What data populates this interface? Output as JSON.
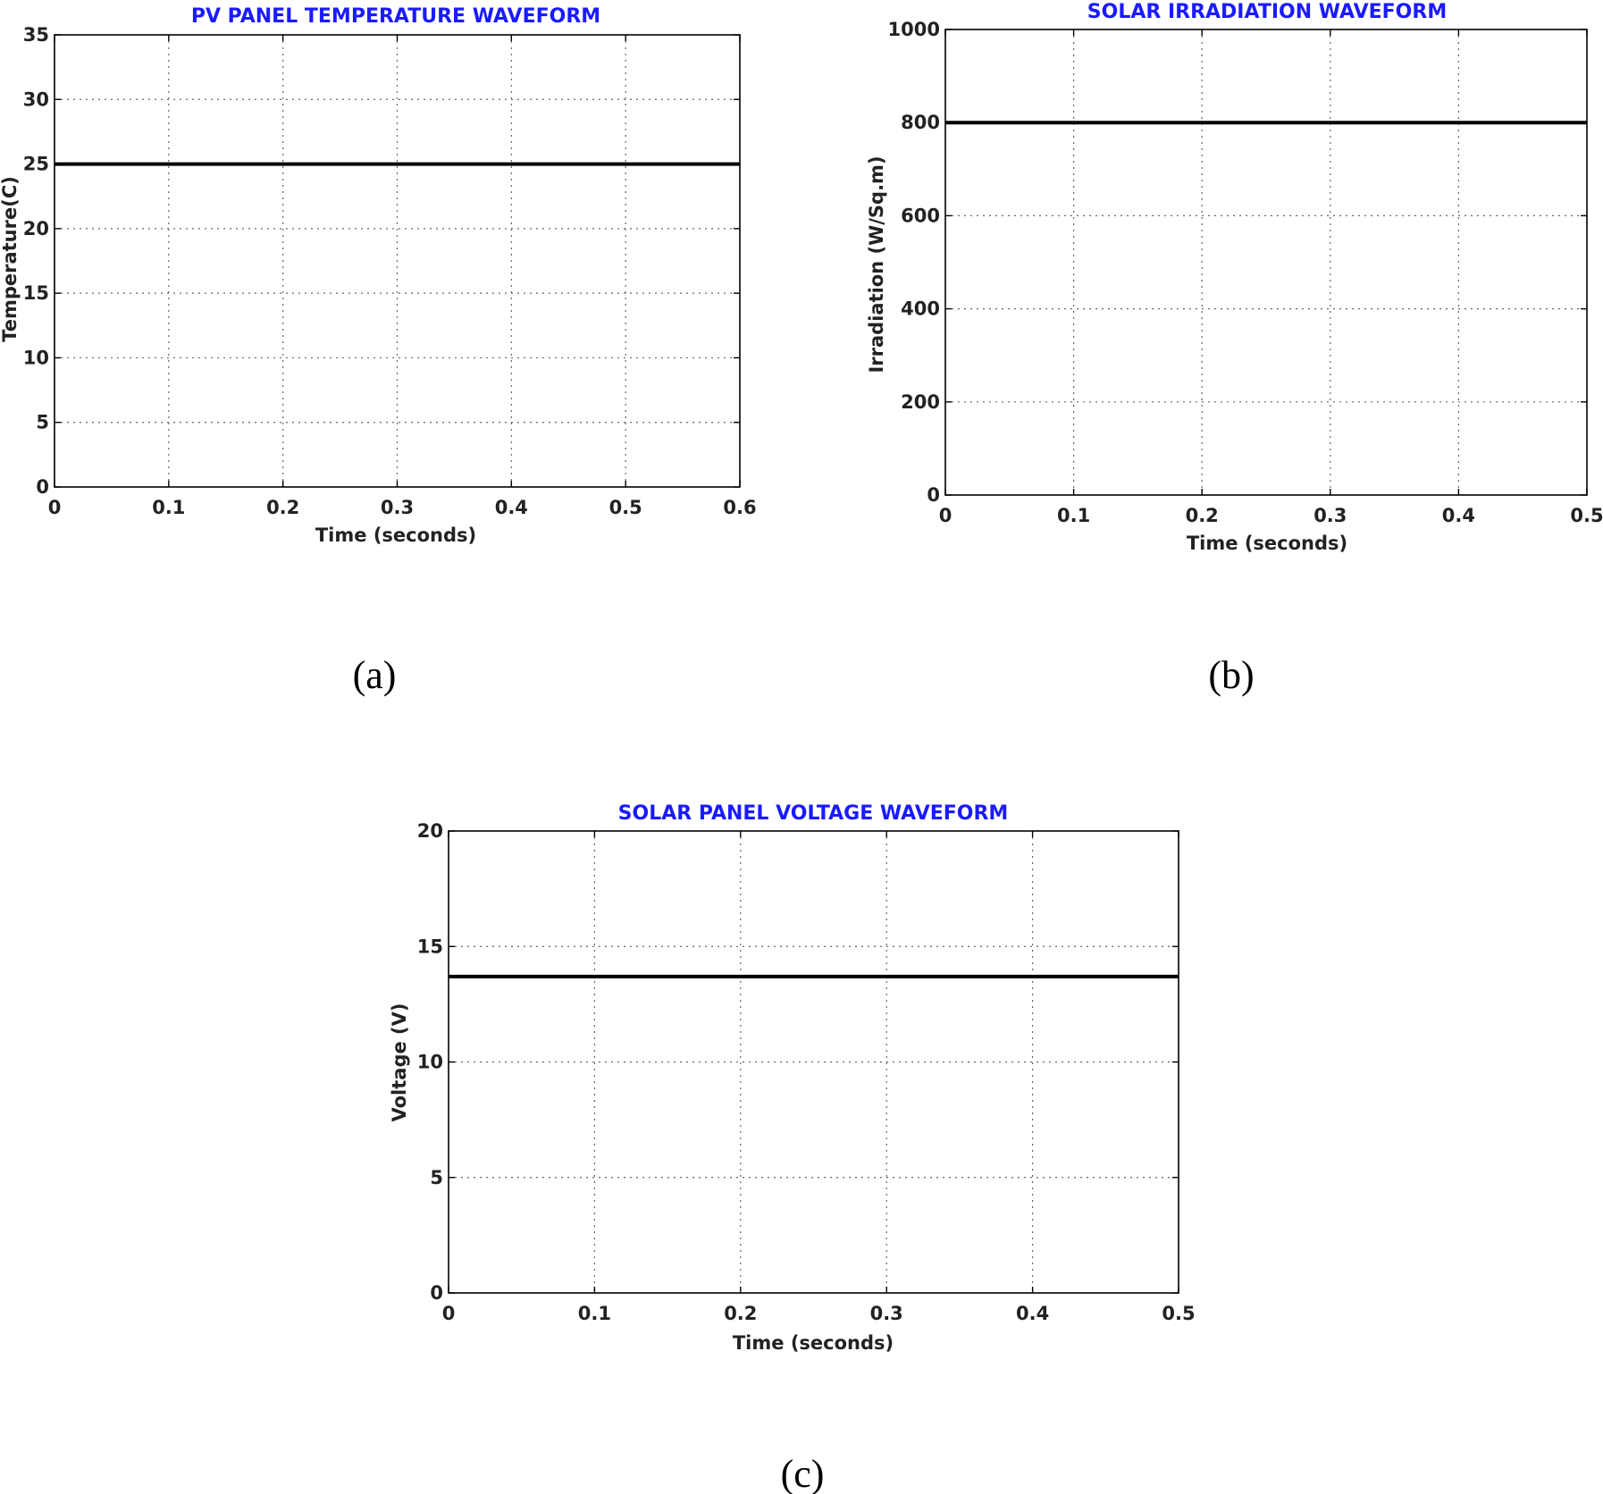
{
  "chart_data": [
    {
      "type": "line",
      "title": "PV PANEL TEMPERATURE WAVEFORM",
      "xlabel": "Time (seconds)",
      "ylabel": "Temperature(C)",
      "xlim": [
        0,
        0.6
      ],
      "ylim": [
        0,
        35
      ],
      "xticks": [
        "0",
        "0.1",
        "0.2",
        "0.3",
        "0.4",
        "0.5",
        "0.6"
      ],
      "yticks": [
        "0",
        "5",
        "10",
        "15",
        "20",
        "25",
        "30",
        "35"
      ],
      "grid": true,
      "series": [
        {
          "x": [
            0,
            0.6
          ],
          "y": [
            25,
            25
          ]
        }
      ],
      "caption": "(a)"
    },
    {
      "type": "line",
      "title": "SOLAR IRRADIATION WAVEFORM",
      "xlabel": "Time (seconds)",
      "ylabel": "Irradiation (W/Sq.m)",
      "xlim": [
        0,
        0.5
      ],
      "ylim": [
        0,
        1000
      ],
      "xticks": [
        "0",
        "0.1",
        "0.2",
        "0.3",
        "0.4",
        "0.5"
      ],
      "yticks": [
        "0",
        "200",
        "400",
        "600",
        "800",
        "1000"
      ],
      "grid": true,
      "series": [
        {
          "x": [
            0,
            0.5
          ],
          "y": [
            800,
            800
          ]
        }
      ],
      "caption": "(b)"
    },
    {
      "type": "line",
      "title": "SOLAR PANEL VOLTAGE WAVEFORM",
      "xlabel": "Time (seconds)",
      "ylabel": "Voltage (V)",
      "xlim": [
        0,
        0.5
      ],
      "ylim": [
        0,
        20
      ],
      "xticks": [
        "0",
        "0.1",
        "0.2",
        "0.3",
        "0.4",
        "0.5"
      ],
      "yticks": [
        "0",
        "5",
        "10",
        "15",
        "20"
      ],
      "grid": true,
      "series": [
        {
          "x": [
            0,
            0.5
          ],
          "y": [
            13.7,
            13.7
          ]
        }
      ],
      "caption": "(c)"
    }
  ]
}
